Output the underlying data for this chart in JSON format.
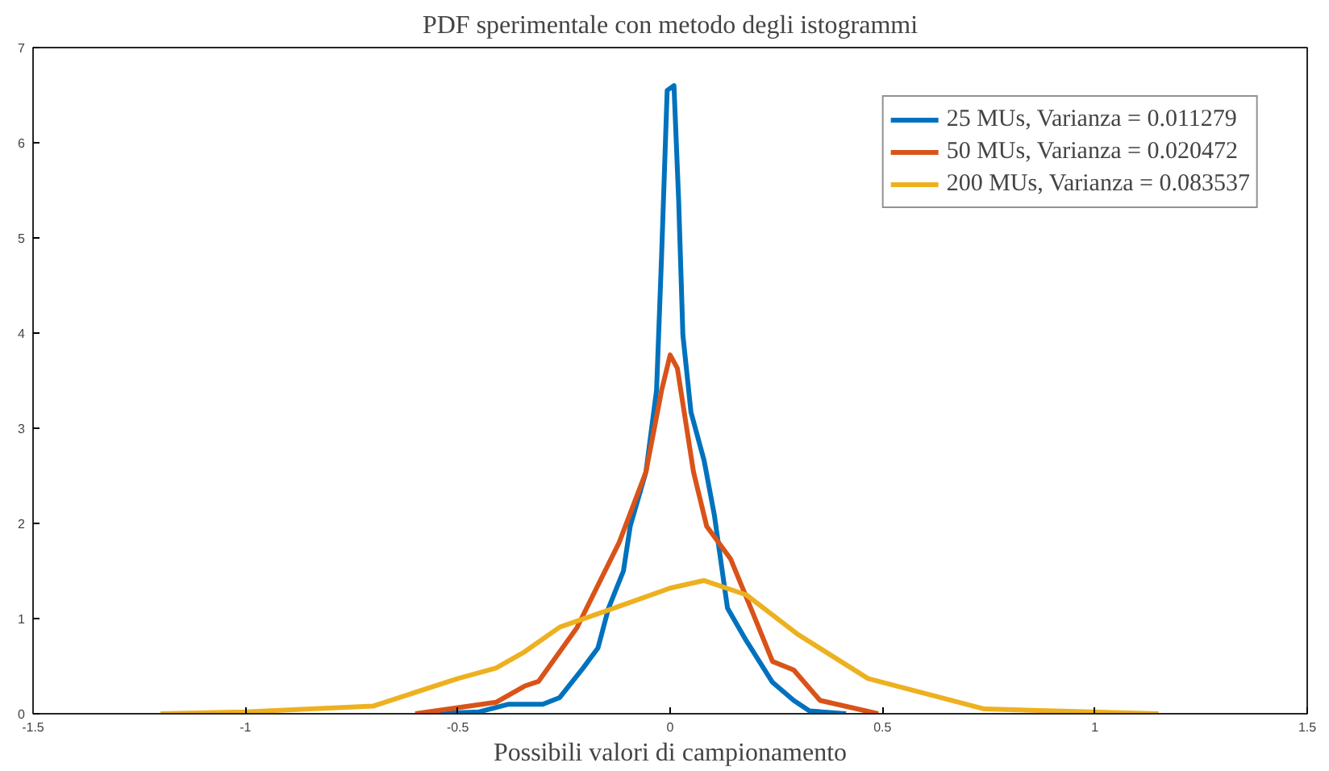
{
  "chart_data": {
    "type": "line",
    "title": "PDF sperimentale con metodo degli istogrammi",
    "xlabel": "Possibili valori di campionamento",
    "xlim": [
      -1.5,
      1.5
    ],
    "xticks": [
      -1.5,
      -1,
      -0.5,
      0,
      0.5,
      1,
      1.5
    ],
    "ylim": [
      0,
      7
    ],
    "yticks": [
      0,
      1,
      2,
      3,
      4,
      5,
      6,
      7
    ],
    "grid": false,
    "legend": "top right",
    "line_style": "solid",
    "marker": "none",
    "series": [
      {
        "name": "25 MUs, Varianza = 0.011279",
        "color": "#0072bd",
        "x": [
          -0.56,
          -0.45,
          -0.38,
          -0.3,
          -0.26,
          -0.205,
          -0.17,
          -0.145,
          -0.11,
          -0.094,
          -0.057,
          -0.032,
          -0.02,
          -0.007,
          0.009,
          0.02,
          0.03,
          0.049,
          0.08,
          0.104,
          0.135,
          0.179,
          0.241,
          0.291,
          0.328,
          0.414
        ],
        "values": [
          0,
          0.02,
          0.1,
          0.1,
          0.17,
          0.48,
          0.69,
          1.11,
          1.5,
          1.97,
          2.54,
          3.4,
          4.83,
          6.55,
          6.6,
          5.4,
          3.98,
          3.17,
          2.66,
          2.09,
          1.11,
          0.77,
          0.33,
          0.14,
          0.03,
          0
        ]
      },
      {
        "name": "50 MUs, Varianza = 0.020472",
        "color": "#d95319",
        "x": [
          -0.6,
          -0.41,
          -0.343,
          -0.31,
          -0.22,
          -0.12,
          -0.057,
          -0.02,
          0.0,
          0.017,
          0.055,
          0.086,
          0.142,
          0.19,
          0.241,
          0.291,
          0.353,
          0.49
        ],
        "values": [
          0,
          0.12,
          0.29,
          0.34,
          0.9,
          1.8,
          2.54,
          3.4,
          3.77,
          3.63,
          2.54,
          1.97,
          1.63,
          1.11,
          0.55,
          0.46,
          0.14,
          0
        ]
      },
      {
        "name": "200 MUs, Varianza = 0.083537",
        "color": "#edb120",
        "x": [
          -1.2,
          -1.0,
          -0.7,
          -0.5,
          -0.41,
          -0.343,
          -0.26,
          -0.094,
          0.0,
          0.08,
          0.179,
          0.302,
          0.466,
          0.74,
          1.15
        ],
        "values": [
          0,
          0.02,
          0.08,
          0.37,
          0.48,
          0.65,
          0.91,
          1.17,
          1.32,
          1.4,
          1.25,
          0.83,
          0.37,
          0.05,
          0
        ]
      }
    ]
  }
}
